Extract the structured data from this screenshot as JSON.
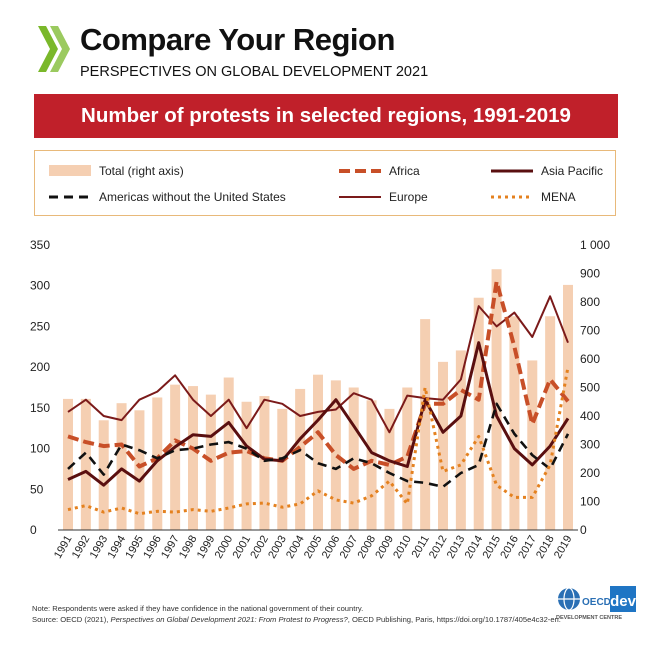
{
  "header": {
    "title": "Compare Your Region",
    "subtitle": "PERSPECTIVES ON GLOBAL DEVELOPMENT 2021"
  },
  "banner": {
    "title": "Number of protests in selected regions, 1991-2019"
  },
  "legend": [
    {
      "key": "total",
      "label": "Total (right axis)",
      "style": "bar",
      "color": "#f5cfb2"
    },
    {
      "key": "africa",
      "label": "Africa",
      "style": "dashed",
      "color": "#c84f28"
    },
    {
      "key": "asia",
      "label": "Asia Pacific",
      "style": "solid",
      "color": "#5a0f10"
    },
    {
      "key": "americas",
      "label": "Americas without the United States",
      "style": "dashed",
      "color": "#111111"
    },
    {
      "key": "europe",
      "label": "Europe",
      "style": "solid",
      "color": "#7b1a1a"
    },
    {
      "key": "mena",
      "label": "MENA",
      "style": "dotted",
      "color": "#e4811f"
    }
  ],
  "chart_data": {
    "type": "bar+line",
    "x": [
      "1991",
      "1992",
      "1993",
      "1994",
      "1995",
      "1996",
      "1997",
      "1998",
      "1999",
      "2000",
      "2001",
      "2002",
      "2003",
      "2004",
      "2005",
      "2006",
      "2007",
      "2008",
      "2009",
      "2010",
      "2011",
      "2012",
      "2013",
      "2014",
      "2015",
      "2016",
      "2017",
      "2018",
      "2019"
    ],
    "left_axis": {
      "ylim": [
        0,
        350
      ],
      "ticks": [
        "0",
        "50",
        "100",
        "150",
        "200",
        "250",
        "300",
        "350"
      ]
    },
    "right_axis": {
      "ylim": [
        0,
        1000
      ],
      "ticks": [
        "0",
        "100",
        "200",
        "300",
        "400",
        "500",
        "600",
        "700",
        "800",
        "900",
        "1 000"
      ]
    },
    "bars": {
      "name": "Total (right axis)",
      "axis": "right",
      "values": [
        460,
        460,
        385,
        445,
        420,
        465,
        510,
        505,
        475,
        535,
        450,
        470,
        425,
        495,
        545,
        525,
        500,
        455,
        425,
        500,
        740,
        590,
        630,
        815,
        915,
        750,
        595,
        750,
        860
      ]
    },
    "series": [
      {
        "name": "Africa",
        "axis": "left",
        "values": [
          115,
          108,
          103,
          105,
          78,
          88,
          110,
          100,
          85,
          95,
          97,
          88,
          85,
          102,
          120,
          92,
          75,
          85,
          80,
          90,
          155,
          155,
          172,
          160,
          305,
          225,
          130,
          185,
          158
        ]
      },
      {
        "name": "Asia Pacific",
        "axis": "left",
        "values": [
          62,
          72,
          55,
          75,
          60,
          85,
          102,
          117,
          115,
          132,
          103,
          87,
          85,
          112,
          135,
          160,
          128,
          95,
          85,
          78,
          160,
          120,
          140,
          230,
          140,
          100,
          80,
          103,
          137
        ]
      },
      {
        "name": "Americas without the United States",
        "axis": "left",
        "values": [
          75,
          95,
          68,
          105,
          98,
          88,
          98,
          100,
          105,
          108,
          100,
          85,
          88,
          98,
          82,
          75,
          88,
          82,
          70,
          60,
          58,
          53,
          70,
          80,
          155,
          118,
          92,
          75,
          118
        ]
      },
      {
        "name": "Europe",
        "axis": "left",
        "values": [
          145,
          160,
          140,
          135,
          160,
          170,
          190,
          160,
          140,
          160,
          125,
          160,
          155,
          140,
          145,
          148,
          168,
          160,
          120,
          165,
          162,
          160,
          185,
          275,
          250,
          267,
          237,
          287,
          230
        ]
      },
      {
        "name": "MENA",
        "axis": "left",
        "values": [
          25,
          30,
          22,
          27,
          20,
          23,
          22,
          25,
          23,
          27,
          32,
          33,
          28,
          32,
          48,
          37,
          33,
          42,
          60,
          32,
          175,
          72,
          80,
          115,
          55,
          40,
          40,
          80,
          200
        ]
      }
    ]
  },
  "footer": {
    "note": "Note: Respondents were asked if they have confidence in the national government of their country.",
    "source_prefix": "Source: OECD (2021), ",
    "source_title": "Perspectives on Global Development 2021: From Protest to Progress?",
    "source_suffix": ", OECD Publishing, Paris, https://doi.org/10.1787/405e4c32-en."
  },
  "logo": {
    "brand": "OECD",
    "sub": "dev",
    "unit": "DEVELOPMENT CENTRE"
  }
}
